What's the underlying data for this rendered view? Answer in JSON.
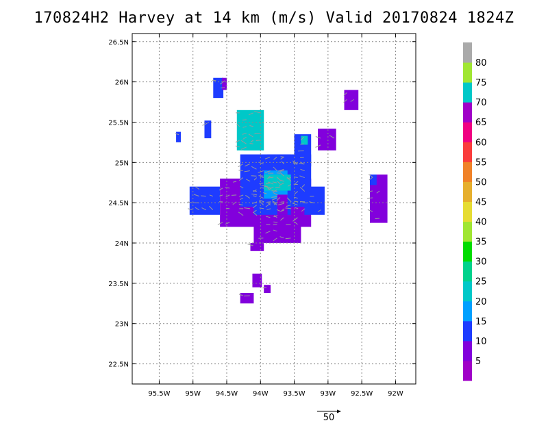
{
  "chart_data": {
    "type": "heatmap",
    "title": "170824H2  Harvey at 14 km (m/s) Valid 20170824  1824Z",
    "xlabel": "",
    "ylabel": "",
    "xlim": [
      -95.9,
      -91.7
    ],
    "ylim": [
      22.25,
      26.6
    ],
    "x_ticks": [
      {
        "value": -95.5,
        "label": "95.5W"
      },
      {
        "value": -95.0,
        "label": "95W"
      },
      {
        "value": -94.5,
        "label": "94.5W"
      },
      {
        "value": -94.0,
        "label": "94W"
      },
      {
        "value": -93.5,
        "label": "93.5W"
      },
      {
        "value": -93.0,
        "label": "93W"
      },
      {
        "value": -92.5,
        "label": "92.5W"
      },
      {
        "value": -92.0,
        "label": "92W"
      }
    ],
    "y_ticks": [
      {
        "value": 22.5,
        "label": "22.5N"
      },
      {
        "value": 23.0,
        "label": "23N"
      },
      {
        "value": 23.5,
        "label": "23.5N"
      },
      {
        "value": 24.0,
        "label": "24N"
      },
      {
        "value": 24.5,
        "label": "24.5N"
      },
      {
        "value": 25.0,
        "label": "25N"
      },
      {
        "value": 25.5,
        "label": "25.5N"
      },
      {
        "value": 26.0,
        "label": "26N"
      },
      {
        "value": 26.5,
        "label": "26.5N"
      }
    ],
    "grid": true,
    "colorbar": {
      "colors": [
        "#a000c8",
        "#8200dc",
        "#1e3cff",
        "#00a0ff",
        "#00c8c8",
        "#00d28c",
        "#00dc00",
        "#a0e632",
        "#e6dc32",
        "#e6af2d",
        "#f08228",
        "#fa3c3c",
        "#f00082",
        "#a000c8",
        "#00c8c8",
        "#a0e632",
        "#aaaaaa"
      ],
      "labels": [
        {
          "index": 1,
          "text": "5"
        },
        {
          "index": 2,
          "text": "10"
        },
        {
          "index": 3,
          "text": "15"
        },
        {
          "index": 4,
          "text": "20"
        },
        {
          "index": 5,
          "text": "25"
        },
        {
          "index": 6,
          "text": "30"
        },
        {
          "index": 7,
          "text": "35"
        },
        {
          "index": 8,
          "text": "40"
        },
        {
          "index": 9,
          "text": "45"
        },
        {
          "index": 10,
          "text": "50"
        },
        {
          "index": 11,
          "text": "55"
        },
        {
          "index": 12,
          "text": "60"
        },
        {
          "index": 13,
          "text": "65"
        },
        {
          "index": 14,
          "text": "70"
        },
        {
          "index": 15,
          "text": "75"
        },
        {
          "index": 16,
          "text": "80"
        }
      ]
    },
    "wind_vector_scale": {
      "label": "50"
    },
    "field_blocks": [
      {
        "lon": [
          -94.7,
          -94.55
        ],
        "lat": [
          25.8,
          26.05
        ],
        "speed": 10
      },
      {
        "lon": [
          -94.57,
          -94.5
        ],
        "lat": [
          25.9,
          26.05
        ],
        "speed": 5
      },
      {
        "lon": [
          -95.25,
          -95.18
        ],
        "lat": [
          25.25,
          25.38
        ],
        "speed": 10
      },
      {
        "lon": [
          -94.83,
          -94.73
        ],
        "lat": [
          25.3,
          25.52
        ],
        "speed": 10
      },
      {
        "lon": [
          -94.35,
          -93.95
        ],
        "lat": [
          25.15,
          25.65
        ],
        "speed": 20
      },
      {
        "lon": [
          -94.25,
          -94.0
        ],
        "lat": [
          25.15,
          25.35
        ],
        "speed": 23
      },
      {
        "lon": [
          -93.5,
          -93.25
        ],
        "lat": [
          24.95,
          25.35
        ],
        "speed": 10
      },
      {
        "lon": [
          -93.4,
          -93.3
        ],
        "lat": [
          25.22,
          25.33
        ],
        "speed": 20
      },
      {
        "lon": [
          -93.15,
          -92.88
        ],
        "lat": [
          25.15,
          25.42
        ],
        "speed": 5
      },
      {
        "lon": [
          -92.76,
          -92.55
        ],
        "lat": [
          25.65,
          25.9
        ],
        "speed": 5
      },
      {
        "lon": [
          -92.38,
          -92.12
        ],
        "lat": [
          24.25,
          24.85
        ],
        "speed": 5
      },
      {
        "lon": [
          -92.38,
          -92.28
        ],
        "lat": [
          24.72,
          24.85
        ],
        "speed": 10
      },
      {
        "lon": [
          -95.05,
          -94.6
        ],
        "lat": [
          24.35,
          24.7
        ],
        "speed": 10
      },
      {
        "lon": [
          -94.6,
          -93.25
        ],
        "lat": [
          24.2,
          24.8
        ],
        "speed": 5
      },
      {
        "lon": [
          -94.1,
          -93.4
        ],
        "lat": [
          24.0,
          24.35
        ],
        "speed": 5
      },
      {
        "lon": [
          -94.15,
          -93.95
        ],
        "lat": [
          23.9,
          24.0
        ],
        "speed": 5
      },
      {
        "lon": [
          -94.3,
          -93.25
        ],
        "lat": [
          24.45,
          25.1
        ],
        "speed": 10
      },
      {
        "lon": [
          -93.9,
          -93.55
        ],
        "lat": [
          25.0,
          25.1
        ],
        "speed": 10
      },
      {
        "lon": [
          -94.1,
          -93.55
        ],
        "lat": [
          24.35,
          24.95
        ],
        "speed": 13
      },
      {
        "lon": [
          -93.95,
          -93.6
        ],
        "lat": [
          24.55,
          24.9
        ],
        "speed": 18
      },
      {
        "lon": [
          -93.95,
          -93.55
        ],
        "lat": [
          24.65,
          24.85
        ],
        "speed": 22
      },
      {
        "lon": [
          -93.75,
          -93.6
        ],
        "lat": [
          24.35,
          24.6
        ],
        "speed": 5
      },
      {
        "lon": [
          -93.35,
          -93.05
        ],
        "lat": [
          24.35,
          24.7
        ],
        "speed": 10
      },
      {
        "lon": [
          -94.12,
          -93.98
        ],
        "lat": [
          23.45,
          23.62
        ],
        "speed": 5
      },
      {
        "lon": [
          -93.95,
          -93.85
        ],
        "lat": [
          23.38,
          23.48
        ],
        "speed": 5
      },
      {
        "lon": [
          -94.3,
          -94.1
        ],
        "lat": [
          23.25,
          23.38
        ],
        "speed": 5
      }
    ]
  }
}
